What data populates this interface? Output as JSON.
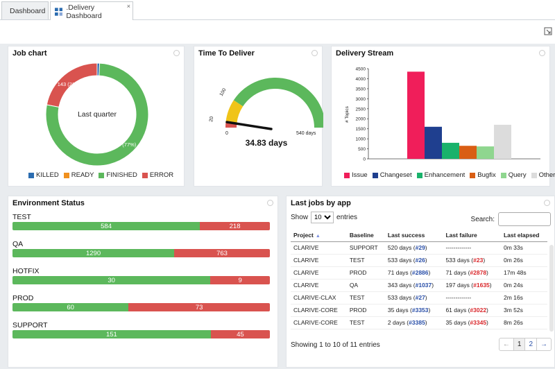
{
  "tabs": [
    {
      "label": "Dashboard",
      "icon": "dashboard-icon"
    },
    {
      "label": ".Delivery Dashboard",
      "icon": "dashboard-icon",
      "close": "×"
    }
  ],
  "job_chart": {
    "title": "Job chart",
    "center_label": "Last quarter",
    "labels": {
      "error": "143 (22%)",
      "finished": "503 (77%)"
    },
    "legend": [
      {
        "label": "KILLED",
        "color": "#2b6cb0"
      },
      {
        "label": "READY",
        "color": "#f0901e"
      },
      {
        "label": "FINISHED",
        "color": "#5cb85c"
      },
      {
        "label": "ERROR",
        "color": "#d9534f"
      }
    ],
    "chart_data": {
      "type": "pie",
      "labels": [
        "KILLED",
        "READY",
        "FINISHED",
        "ERROR"
      ],
      "values": [
        5,
        0,
        503,
        143
      ],
      "title": "Job chart"
    }
  },
  "time_to_deliver": {
    "title": "Time To Deliver",
    "value_label": "34.83 days",
    "tick_labels": {
      "min": "0",
      "t20": "20",
      "t100": "100",
      "max": "540 days"
    },
    "chart_data": {
      "type": "gauge",
      "value": 34.83,
      "min": 0,
      "max": 540,
      "bands": [
        {
          "from": 0,
          "to": 20,
          "color": "#d9534f"
        },
        {
          "from": 20,
          "to": 100,
          "color": "#f0c419"
        },
        {
          "from": 100,
          "to": 540,
          "color": "#5cb85c"
        }
      ]
    }
  },
  "delivery_stream": {
    "title": "Delivery Stream",
    "ylabel": "# Topics",
    "legend": [
      {
        "label": "Issue",
        "color": "#f01e5a"
      },
      {
        "label": "Changeset",
        "color": "#1f3f8f"
      },
      {
        "label": "Enhancement",
        "color": "#19b26b"
      },
      {
        "label": "Bugfix",
        "color": "#d95e14"
      },
      {
        "label": "Query",
        "color": "#8fd68f"
      },
      {
        "label": "Other",
        "color": "#dcdcdc"
      }
    ],
    "chart_data": {
      "type": "bar",
      "categories": [
        "Issue",
        "Changeset",
        "Enhancement",
        "Bugfix",
        "Query",
        "Other"
      ],
      "values": [
        4350,
        1600,
        800,
        650,
        620,
        1700
      ],
      "ylim": [
        0,
        4500
      ],
      "yticks": [
        "0",
        "500",
        "1000",
        "1500",
        "2000",
        "2500",
        "3000",
        "3500",
        "4000",
        "4500"
      ],
      "ylabel": "# Topics"
    }
  },
  "environment": {
    "title": "Environment Status",
    "rows": [
      {
        "name": "TEST",
        "ok": 584,
        "ko": 218
      },
      {
        "name": "QA",
        "ok": 1290,
        "ko": 763
      },
      {
        "name": "HOTFIX",
        "ok": 30,
        "ko": 9
      },
      {
        "name": "PROD",
        "ok": 60,
        "ko": 73
      },
      {
        "name": "SUPPORT",
        "ok": 151,
        "ko": 45
      }
    ]
  },
  "last_jobs": {
    "title": "Last jobs by app",
    "show_label": "Show",
    "entries_value": "10",
    "entries_label": "entries",
    "search_label": "Search:",
    "headers": [
      "Project",
      "Baseline",
      "Last success",
      "Last failure",
      "Last elapsed"
    ],
    "sort_indicator": "▲",
    "rows": [
      {
        "project": "CLARIVE",
        "baseline": "SUPPORT",
        "succ_text": "520 days (",
        "succ_link": "#29",
        "fail_text": "-------------",
        "fail_link": "",
        "elapsed": "0m 33s"
      },
      {
        "project": "CLARIVE",
        "baseline": "TEST",
        "succ_text": "533 days (",
        "succ_link": "#26",
        "fail_text": "533 days (",
        "fail_link": "#23",
        "elapsed": "0m 26s"
      },
      {
        "project": "CLARIVE",
        "baseline": "PROD",
        "succ_text": "71 days (",
        "succ_link": "#2886",
        "fail_text": "71 days (",
        "fail_link": "#2878",
        "elapsed": "17m 48s"
      },
      {
        "project": "CLARIVE",
        "baseline": "QA",
        "succ_text": "343 days (",
        "succ_link": "#1037",
        "fail_text": "197 days (",
        "fail_link": "#1635",
        "elapsed": "0m 24s"
      },
      {
        "project": "CLARIVE-CLAX",
        "baseline": "TEST",
        "succ_text": "533 days (",
        "succ_link": "#27",
        "fail_text": "-------------",
        "fail_link": "",
        "elapsed": "2m 16s"
      },
      {
        "project": "CLARIVE-CORE",
        "baseline": "PROD",
        "succ_text": "35 days (",
        "succ_link": "#3353",
        "fail_text": "61 days (",
        "fail_link": "#3022",
        "elapsed": "3m 52s"
      },
      {
        "project": "CLARIVE-CORE",
        "baseline": "TEST",
        "succ_text": "2 days (",
        "succ_link": "#3385",
        "fail_text": "35 days (",
        "fail_link": "#3345",
        "elapsed": "8m 26s"
      }
    ],
    "info": "Showing 1 to 10 of 11 entries",
    "pager": {
      "prev": "←",
      "pages": [
        "1",
        "2"
      ],
      "next": "→"
    }
  }
}
